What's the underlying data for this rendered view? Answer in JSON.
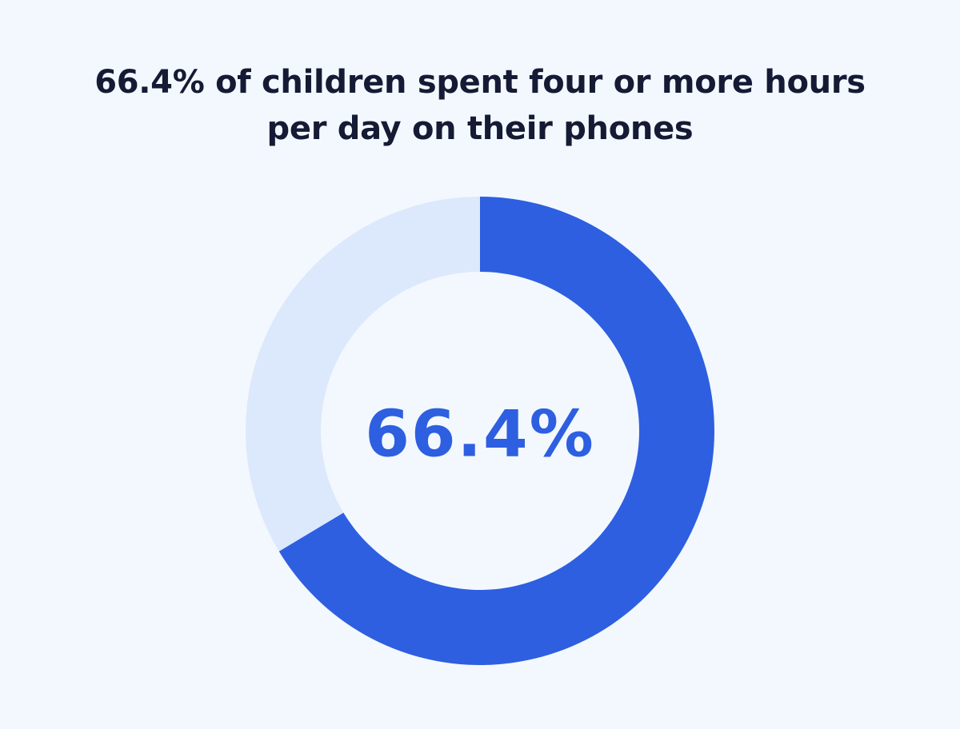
{
  "chart_data": {
    "type": "pie",
    "title_lines": [
      "66.4% of children spent four or more hours",
      "per day on their phones"
    ],
    "slices": [
      {
        "value": 66.4,
        "color": "#2d5fe0"
      },
      {
        "value": 33.6,
        "color": "#dce8fc"
      }
    ],
    "center_label": "66.4%",
    "center_label_color": "#2d5fe0",
    "donut": true
  }
}
